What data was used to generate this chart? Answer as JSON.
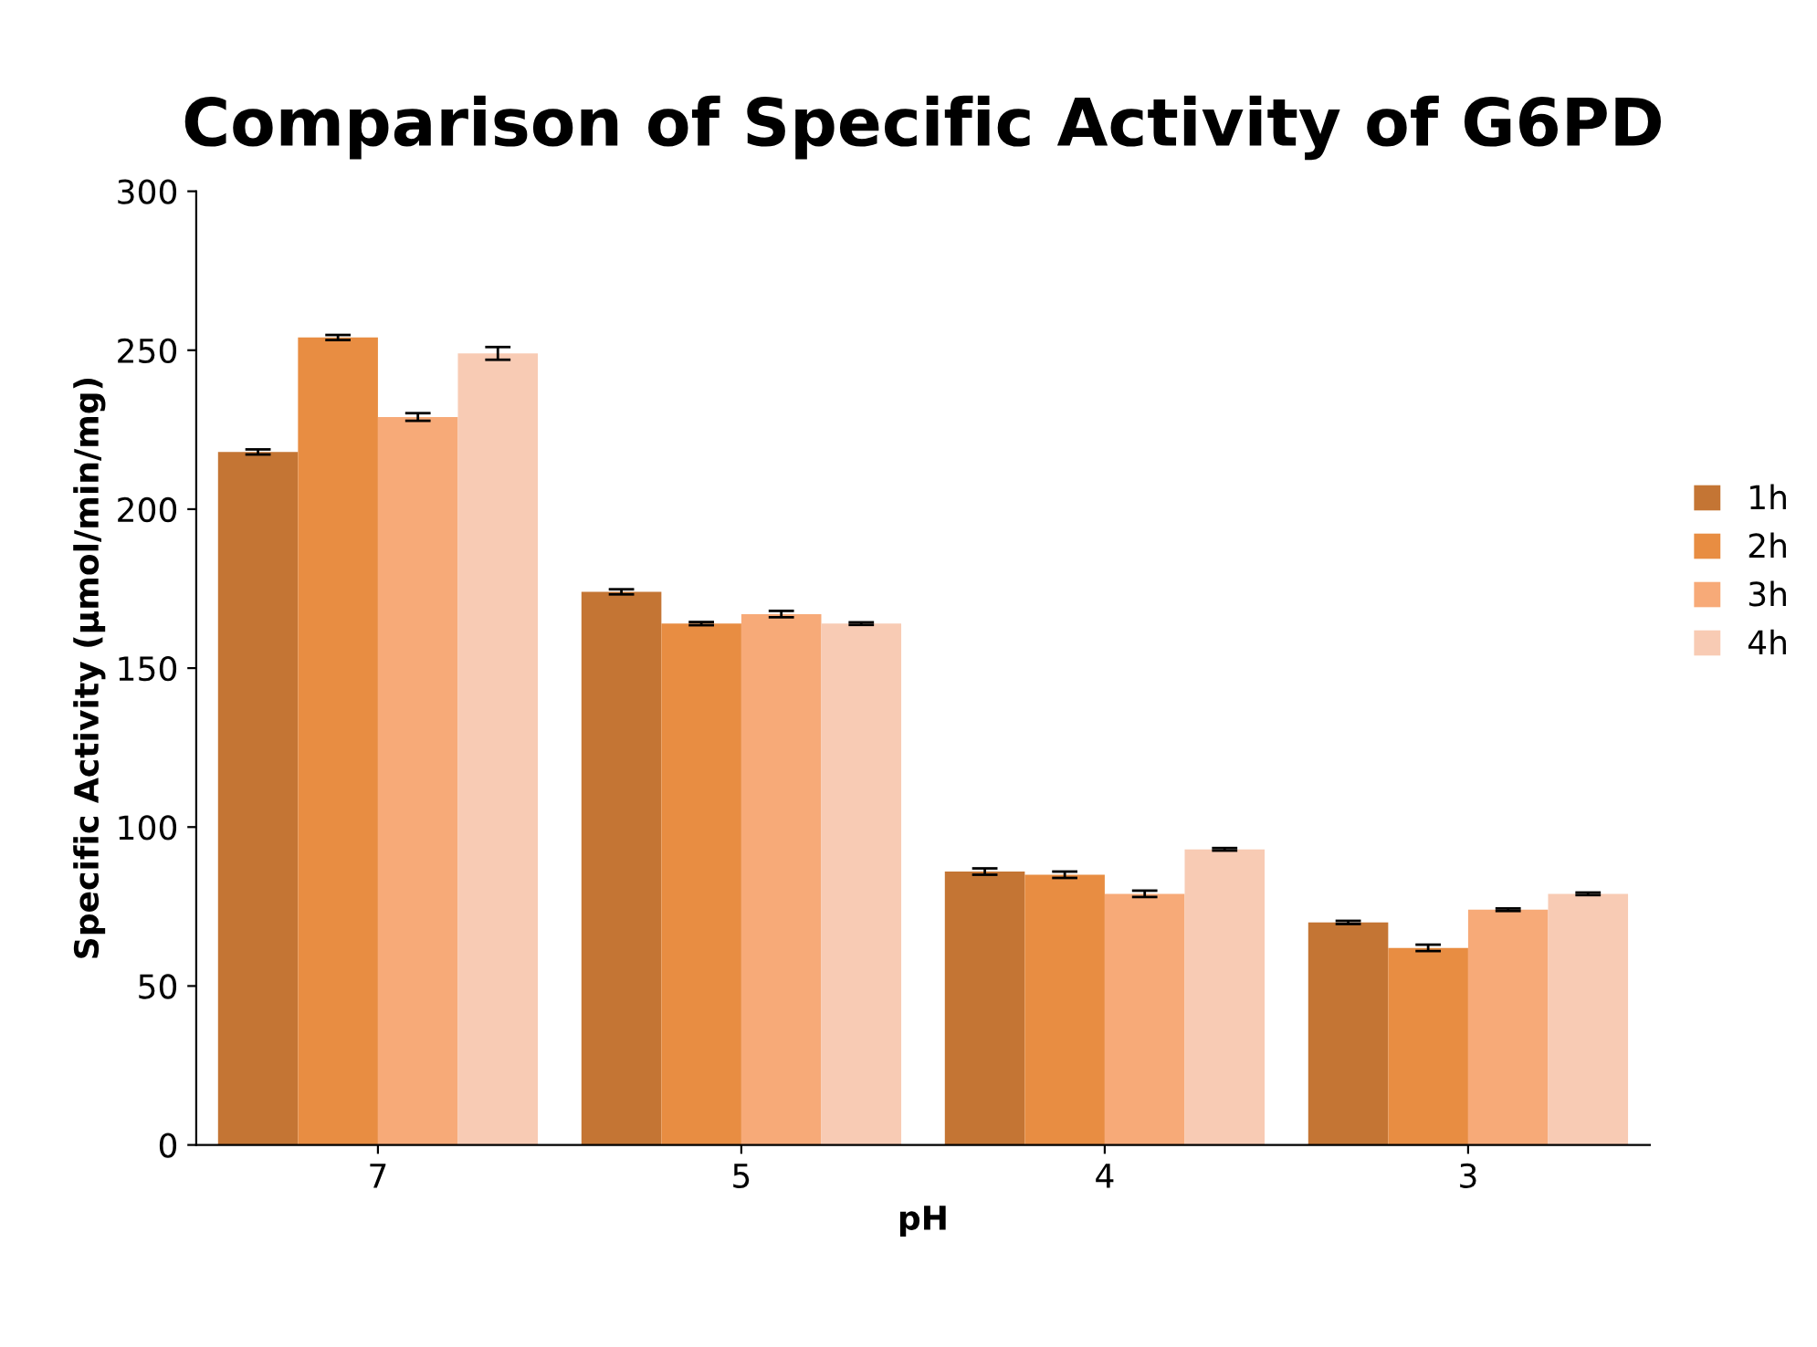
{
  "chart_data": {
    "type": "bar",
    "title": "Comparison of Specific Activity of G6PD",
    "xlabel": "pH",
    "ylabel": "Specific Activity (µmol/min/mg)",
    "categories": [
      "7",
      "5",
      "4",
      "3"
    ],
    "series": [
      {
        "name": "1h",
        "color": "#c47534",
        "values": [
          218,
          174,
          86,
          70
        ],
        "errors": [
          0.8,
          0.8,
          1,
          0.5
        ]
      },
      {
        "name": "2h",
        "color": "#e88d42",
        "values": [
          254,
          164,
          85,
          62
        ],
        "errors": [
          0.8,
          0.5,
          1,
          1
        ]
      },
      {
        "name": "3h",
        "color": "#f7aa78",
        "values": [
          229,
          167,
          79,
          74
        ],
        "errors": [
          1.2,
          1,
          1,
          0.4
        ]
      },
      {
        "name": "4h",
        "color": "#f8cbb4",
        "values": [
          249,
          164,
          93,
          79
        ],
        "errors": [
          2,
          0.4,
          0.4,
          0.4
        ]
      }
    ],
    "ylim": [
      0,
      300
    ],
    "yticks": [
      0,
      50,
      100,
      150,
      200,
      250,
      300
    ],
    "grid": false,
    "legend": "right"
  }
}
